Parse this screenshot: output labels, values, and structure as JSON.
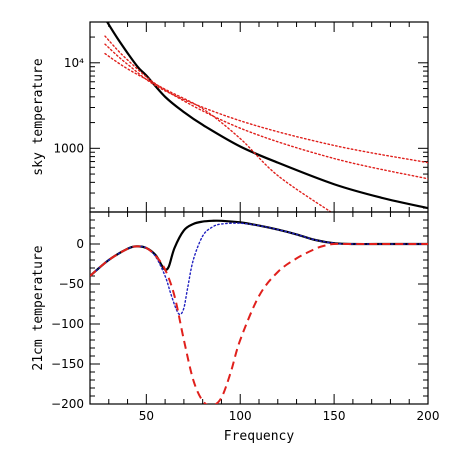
{
  "chart_data": [
    {
      "type": "line",
      "ylabel": "sky temperature",
      "yscale": "log",
      "ylim": [
        180,
        30000
      ],
      "xlim": [
        20,
        200
      ],
      "y_ticks": [
        {
          "value": 1000,
          "label": "1000"
        },
        {
          "value": 10000,
          "label": "10⁴"
        }
      ],
      "series": [
        {
          "style": "solid",
          "color": "#000000",
          "x": [
            28,
            35,
            45,
            50,
            60,
            70,
            80,
            100,
            120,
            150,
            175,
            200
          ],
          "y": [
            33000,
            18800,
            9200,
            7100,
            4000,
            2650,
            1880,
            1050,
            680,
            380,
            265,
            200
          ]
        },
        {
          "style": "dotted",
          "color": "#e0201c",
          "x": [
            28,
            40,
            60,
            100,
            150,
            200
          ],
          "y": [
            16500,
            9600,
            4700,
            2100,
            1080,
            680
          ]
        },
        {
          "style": "dotted",
          "color": "#e0201c",
          "x": [
            28,
            40,
            60,
            100,
            150,
            200
          ],
          "y": [
            20500,
            10800,
            4800,
            1720,
            760,
            440
          ]
        },
        {
          "style": "dotted",
          "color": "#e0201c",
          "x": [
            28,
            40,
            60,
            80,
            100,
            120,
            150
          ],
          "y": [
            12800,
            8500,
            4900,
            2900,
            1300,
            480,
            170
          ]
        }
      ]
    },
    {
      "type": "line",
      "xlabel": "Frequency",
      "ylabel": "21cm temperature",
      "xlim": [
        20,
        200
      ],
      "ylim": [
        -200,
        40
      ],
      "x_ticks": [
        {
          "value": 50,
          "label": "50"
        },
        {
          "value": 100,
          "label": "100"
        },
        {
          "value": 150,
          "label": "150"
        },
        {
          "value": 200,
          "label": "200"
        }
      ],
      "y_ticks": [
        {
          "value": 0,
          "label": "0"
        },
        {
          "value": -50,
          "label": "−50"
        },
        {
          "value": -100,
          "label": "−100"
        },
        {
          "value": -150,
          "label": "−150"
        },
        {
          "value": -200,
          "label": "−200"
        }
      ],
      "series": [
        {
          "style": "solid",
          "color": "#000000",
          "x": [
            20,
            30,
            40,
            45,
            50,
            55,
            58,
            60,
            62,
            65,
            70,
            75,
            80,
            85,
            90,
            100,
            110,
            120,
            130,
            140,
            150,
            160,
            180,
            200
          ],
          "y": [
            -40,
            -20,
            -6,
            -3,
            -5,
            -14,
            -26,
            -32,
            -28,
            -5,
            17,
            25,
            28,
            29,
            29,
            27,
            23,
            18,
            12,
            5,
            1,
            0,
            0,
            0
          ]
        },
        {
          "style": "dotted",
          "color": "#2020c0",
          "x": [
            20,
            30,
            40,
            45,
            50,
            55,
            60,
            63,
            66,
            68,
            70,
            72,
            75,
            80,
            85,
            90,
            100,
            110,
            120,
            130,
            140,
            150,
            160,
            200
          ],
          "y": [
            -40,
            -20,
            -6,
            -3,
            -5,
            -16,
            -40,
            -62,
            -82,
            -88,
            -80,
            -55,
            -20,
            10,
            21,
            25,
            26,
            23,
            18,
            12,
            5,
            1,
            0,
            0
          ]
        },
        {
          "style": "dashed",
          "color": "#e0201c",
          "x": [
            20,
            30,
            40,
            45,
            50,
            55,
            60,
            65,
            70,
            75,
            80,
            85,
            90,
            95,
            100,
            110,
            120,
            130,
            140,
            145,
            150,
            160,
            200
          ],
          "y": [
            -40,
            -20,
            -6,
            -3,
            -5,
            -15,
            -32,
            -65,
            -120,
            -170,
            -196,
            -202,
            -192,
            -160,
            -120,
            -65,
            -35,
            -18,
            -6,
            -2,
            0,
            0,
            0
          ]
        }
      ]
    }
  ]
}
